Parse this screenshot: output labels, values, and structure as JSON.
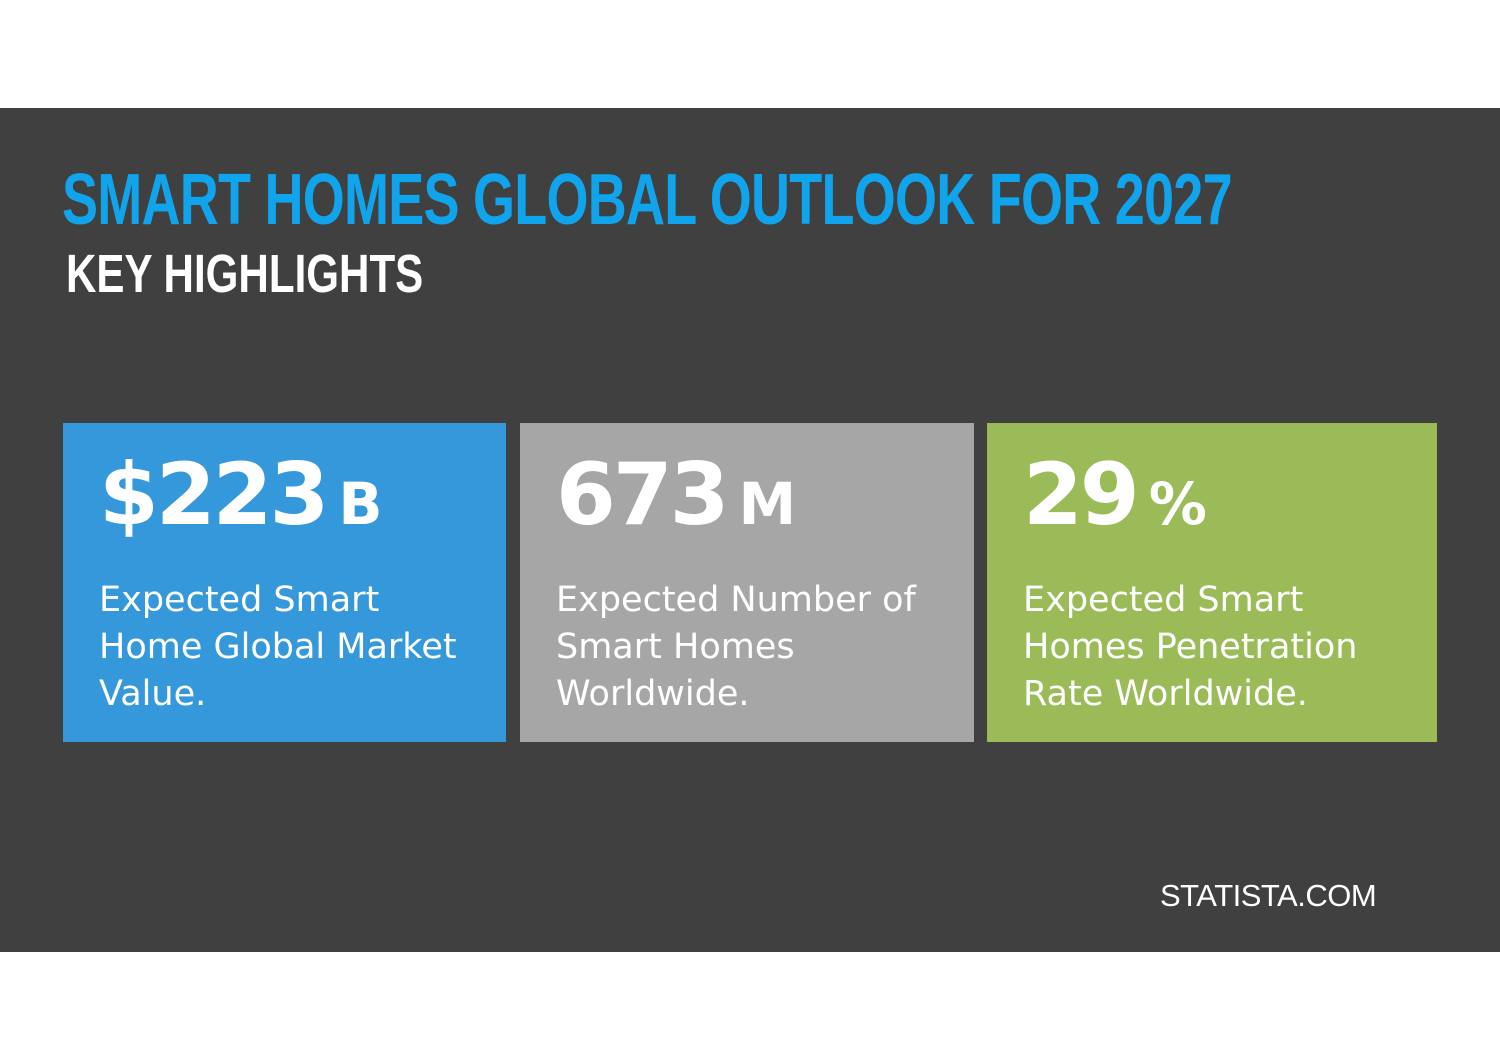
{
  "header": {
    "title": "SMART HOMES GLOBAL OUTLOOK FOR 2027",
    "subtitle": "KEY HIGHLIGHTS"
  },
  "cards": [
    {
      "value": "$223",
      "unit": "B",
      "description": "Expected Smart Home Global Market Value.",
      "color": "#3598db"
    },
    {
      "value": "673",
      "unit": "M",
      "description": "Expected Number of Smart Homes Worldwide.",
      "color": "#a6a6a6"
    },
    {
      "value": "29",
      "unit": "%",
      "description": "Expected Smart Homes Penetration Rate Worldwide.",
      "color": "#9bbb59"
    }
  ],
  "source": "STATISTA.COM",
  "colors": {
    "background": "#404040",
    "title": "#10a4ec",
    "text": "#ffffff"
  }
}
